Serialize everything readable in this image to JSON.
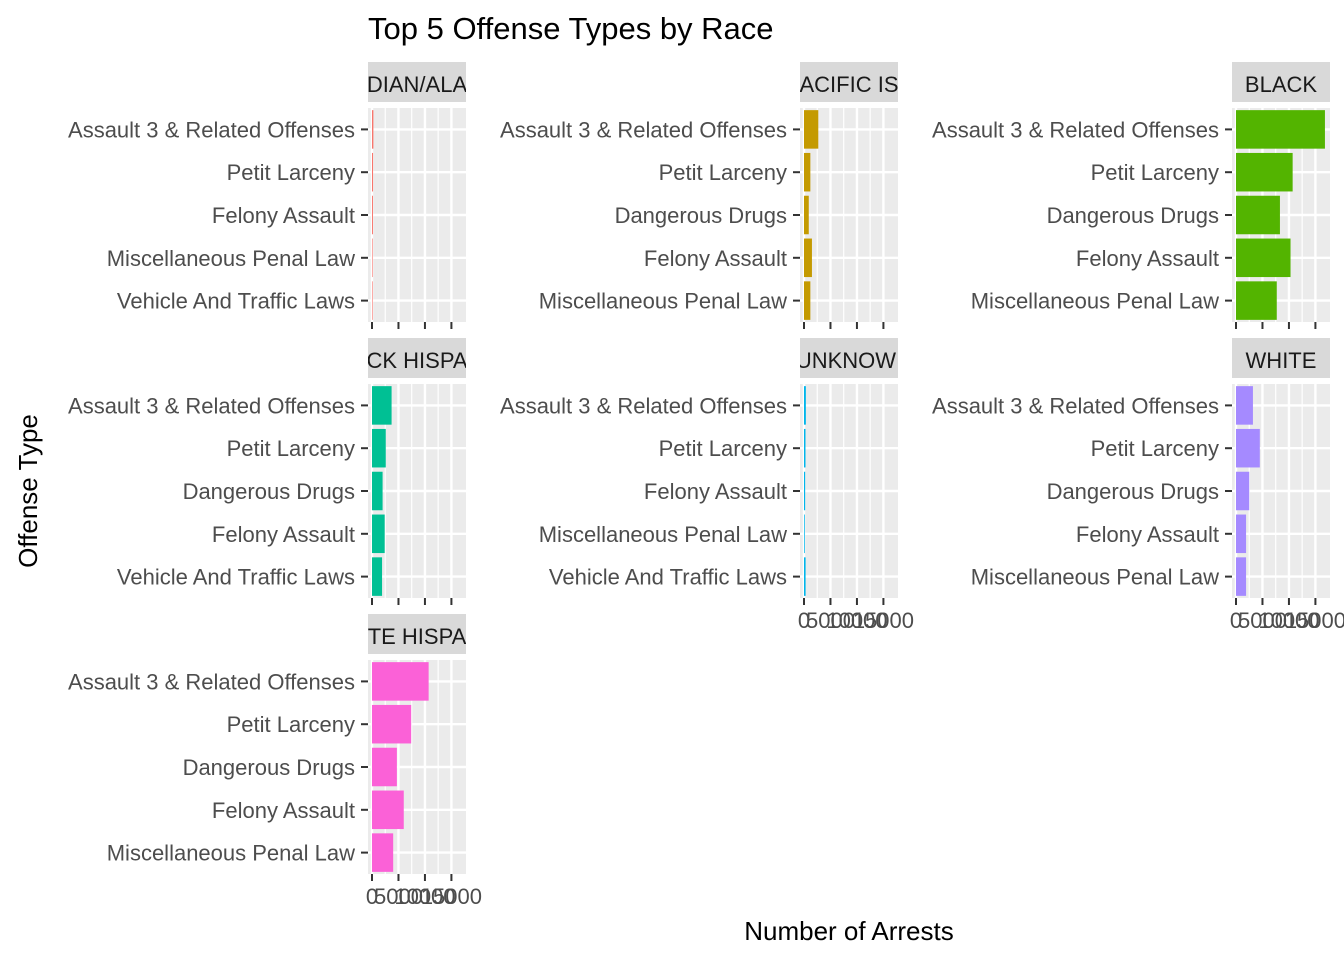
{
  "chart_data": {
    "type": "bar",
    "orientation": "horizontal",
    "title": "Top 5 Offense Types by Race",
    "xlabel": "Number of Arrests",
    "ylabel": "Offense Type",
    "xlim": [
      0,
      17000
    ],
    "x_ticks": [
      0,
      5000,
      10000,
      15000
    ],
    "x_tick_labels": [
      "0",
      "5000",
      "10000",
      "15000"
    ],
    "grid": true,
    "legend": "none",
    "panels": [
      {
        "strip": "DIAN/ALA",
        "color": "#F8766D",
        "categories": [
          "Assault 3 & Related Offenses",
          "Petit Larceny",
          "Felony Assault",
          "Miscellaneous Penal Law",
          "Vehicle And Traffic Laws"
        ],
        "values": [
          260,
          200,
          180,
          90,
          80
        ]
      },
      {
        "strip": "ACIFIC IS",
        "color": "#C49A00",
        "categories": [
          "Assault 3 & Related Offenses",
          "Petit Larceny",
          "Dangerous Drugs",
          "Felony Assault",
          "Miscellaneous Penal Law"
        ],
        "values": [
          2700,
          1200,
          900,
          1500,
          1200
        ]
      },
      {
        "strip": "BLACK",
        "color": "#53B400",
        "categories": [
          "Assault 3 & Related Offenses",
          "Petit Larceny",
          "Dangerous Drugs",
          "Felony Assault",
          "Miscellaneous Penal Law"
        ],
        "values": [
          16800,
          10700,
          8300,
          10300,
          7700
        ]
      },
      {
        "strip": "CK HISPA",
        "color": "#00C094",
        "categories": [
          "Assault 3 & Related Offenses",
          "Petit Larceny",
          "Dangerous Drugs",
          "Felony Assault",
          "Vehicle And Traffic Laws"
        ],
        "values": [
          3700,
          2600,
          2000,
          2400,
          1900
        ]
      },
      {
        "strip": "UNKNOWI",
        "color": "#00B6EB",
        "categories": [
          "Assault 3 & Related Offenses",
          "Petit Larceny",
          "Felony Assault",
          "Miscellaneous Penal Law",
          "Vehicle And Traffic Laws"
        ],
        "values": [
          350,
          280,
          220,
          140,
          300
        ]
      },
      {
        "strip": "WHITE",
        "color": "#A58AFF",
        "categories": [
          "Assault 3 & Related Offenses",
          "Petit Larceny",
          "Dangerous Drugs",
          "Felony Assault",
          "Miscellaneous Penal Law"
        ],
        "values": [
          3200,
          4500,
          2500,
          1900,
          1900
        ]
      },
      {
        "strip": "TE HISPA",
        "color": "#FB61D7",
        "categories": [
          "Assault 3 & Related Offenses",
          "Petit Larceny",
          "Dangerous Drugs",
          "Felony Assault",
          "Miscellaneous Penal Law"
        ],
        "values": [
          10700,
          7400,
          4700,
          6000,
          4000
        ]
      }
    ]
  }
}
